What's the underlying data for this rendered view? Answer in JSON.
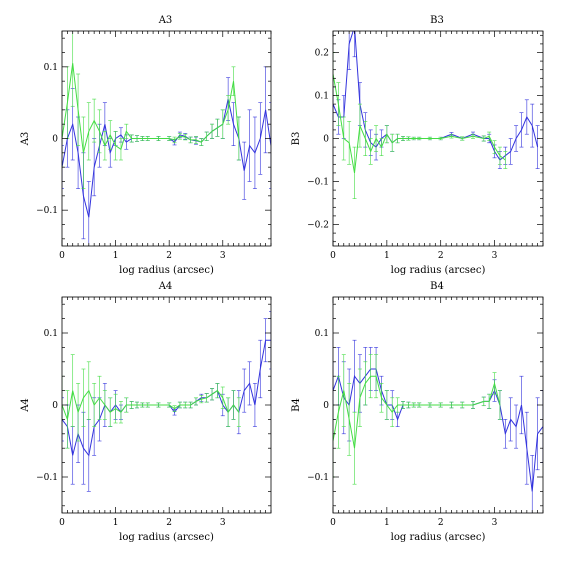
{
  "colors": {
    "series_a": "#3333dd",
    "series_b": "#44dd44",
    "axes": "#000000"
  },
  "chart_data": [
    {
      "type": "line",
      "title": "A3",
      "xlabel": "log radius (arcsec)",
      "ylabel": "A3",
      "xlim": [
        0,
        3.9
      ],
      "ylim": [
        -0.15,
        0.15
      ],
      "xticks": [
        0,
        1,
        2,
        3
      ],
      "yticks": [
        -0.1,
        0,
        0.1
      ],
      "yticklabels": [
        "−0.1",
        "0",
        "0.1"
      ],
      "grid": false,
      "series": [
        {
          "color": "#3333dd",
          "x": [
            0,
            0.1,
            0.2,
            0.3,
            0.4,
            0.5,
            0.6,
            0.7,
            0.8,
            0.9,
            1.0,
            1.1,
            1.2,
            1.3,
            1.4,
            1.5,
            1.6,
            1.8,
            2.0,
            2.1,
            2.2,
            2.3,
            2.4,
            2.5,
            2.6,
            2.7,
            2.8,
            2.9,
            3.0,
            3.1,
            3.2,
            3.3,
            3.4,
            3.5,
            3.6,
            3.7,
            3.8,
            3.9
          ],
          "y": [
            -0.04,
            0.0,
            0.02,
            -0.02,
            -0.08,
            -0.11,
            -0.04,
            -0.01,
            0.02,
            -0.02,
            0.0,
            0.005,
            -0.005,
            0.0,
            0.0,
            0.0,
            0.0,
            0.0,
            0.0,
            -0.005,
            0.005,
            0.003,
            -0.002,
            -0.003,
            -0.005,
            0.003,
            0.01,
            0.015,
            0.02,
            0.055,
            0.02,
            0.0,
            -0.045,
            -0.01,
            -0.02,
            0.0,
            0.04,
            -0.01
          ],
          "err": [
            0.03,
            0.04,
            0.05,
            0.05,
            0.06,
            0.05,
            0.04,
            0.03,
            0.03,
            0.02,
            0.01,
            0.01,
            0.01,
            0.005,
            0.004,
            0.003,
            0.003,
            0.003,
            0.003,
            0.004,
            0.004,
            0.004,
            0.004,
            0.005,
            0.005,
            0.006,
            0.01,
            0.012,
            0.02,
            0.03,
            0.03,
            0.03,
            0.04,
            0.05,
            0.05,
            0.05,
            0.06,
            0.06
          ]
        },
        {
          "color": "#44dd44",
          "x": [
            0,
            0.1,
            0.2,
            0.3,
            0.4,
            0.5,
            0.6,
            0.7,
            0.8,
            0.9,
            1.0,
            1.1,
            1.2,
            1.3,
            1.4,
            1.5,
            1.6,
            1.8,
            2.0,
            2.1,
            2.2,
            2.3,
            2.4,
            2.5,
            2.6,
            2.7,
            2.8,
            2.9,
            3.0,
            3.1,
            3.2,
            3.3
          ],
          "y": [
            0.0,
            0.05,
            0.105,
            0.04,
            -0.02,
            0.01,
            0.025,
            0.01,
            -0.01,
            0.005,
            -0.01,
            -0.015,
            0.01,
            0.0,
            0.0,
            0.0,
            0.0,
            0.0,
            0.0,
            -0.002,
            0.003,
            0.002,
            -0.002,
            -0.002,
            -0.005,
            0.003,
            0.01,
            0.015,
            0.02,
            0.04,
            0.08,
            0.0
          ],
          "err": [
            0.04,
            0.05,
            0.06,
            0.05,
            0.05,
            0.04,
            0.03,
            0.03,
            0.02,
            0.02,
            0.02,
            0.015,
            0.01,
            0.005,
            0.004,
            0.003,
            0.003,
            0.003,
            0.003,
            0.004,
            0.004,
            0.004,
            0.004,
            0.005,
            0.005,
            0.006,
            0.01,
            0.012,
            0.02,
            0.02,
            0.02,
            0.03
          ]
        }
      ]
    },
    {
      "type": "line",
      "title": "B3",
      "xlabel": "log radius (arcsec)",
      "ylabel": "B3",
      "xlim": [
        0,
        3.9
      ],
      "ylim": [
        -0.25,
        0.25
      ],
      "xticks": [
        0,
        1,
        2,
        3
      ],
      "yticks": [
        -0.2,
        -0.1,
        0,
        0.1,
        0.2
      ],
      "yticklabels": [
        "−0.2",
        "−0.1",
        "0",
        "0.1",
        "0.2"
      ],
      "grid": false,
      "series": [
        {
          "color": "#3333dd",
          "x": [
            0,
            0.1,
            0.2,
            0.3,
            0.4,
            0.5,
            0.6,
            0.7,
            0.8,
            0.9,
            1.0,
            1.1,
            1.2,
            1.3,
            1.4,
            1.5,
            1.6,
            1.8,
            2.0,
            2.2,
            2.4,
            2.6,
            2.8,
            2.9,
            3.0,
            3.1,
            3.2,
            3.3,
            3.4,
            3.5,
            3.6,
            3.7,
            3.8
          ],
          "y": [
            0.08,
            0.05,
            0.05,
            0.22,
            0.26,
            0.08,
            0.02,
            -0.01,
            -0.02,
            0.0,
            0.01,
            -0.01,
            0.0,
            0.0,
            0.0,
            0.0,
            0.0,
            0.0,
            0.0,
            0.01,
            0.0,
            0.01,
            0.0,
            0.0,
            -0.03,
            -0.05,
            -0.04,
            -0.03,
            0.0,
            0.02,
            0.05,
            0.03,
            -0.02
          ],
          "err": [
            0.04,
            0.04,
            0.05,
            0.06,
            0.07,
            0.05,
            0.04,
            0.03,
            0.03,
            0.02,
            0.02,
            0.02,
            0.01,
            0.005,
            0.004,
            0.003,
            0.003,
            0.003,
            0.003,
            0.004,
            0.004,
            0.005,
            0.006,
            0.01,
            0.015,
            0.02,
            0.02,
            0.03,
            0.03,
            0.04,
            0.04,
            0.05,
            0.05
          ]
        },
        {
          "color": "#44dd44",
          "x": [
            0,
            0.1,
            0.2,
            0.3,
            0.4,
            0.5,
            0.6,
            0.7,
            0.8,
            0.9,
            1.0,
            1.1,
            1.2,
            1.3,
            1.4,
            1.5,
            1.6,
            1.8,
            2.0,
            2.2,
            2.4,
            2.6,
            2.8,
            2.9,
            3.0,
            3.1,
            3.2
          ],
          "y": [
            0.15,
            0.08,
            0.0,
            -0.01,
            -0.08,
            0.03,
            0.0,
            -0.03,
            0.0,
            -0.02,
            0.01,
            -0.01,
            0.0,
            0.0,
            0.0,
            0.0,
            0.0,
            0.0,
            0.0,
            0.005,
            0.0,
            0.005,
            0.0,
            0.005,
            -0.02,
            -0.04,
            -0.05
          ],
          "err": [
            0.05,
            0.05,
            0.05,
            0.05,
            0.06,
            0.05,
            0.04,
            0.03,
            0.03,
            0.02,
            0.02,
            0.02,
            0.01,
            0.005,
            0.004,
            0.003,
            0.003,
            0.003,
            0.003,
            0.004,
            0.004,
            0.005,
            0.006,
            0.01,
            0.015,
            0.02,
            0.02
          ]
        }
      ]
    },
    {
      "type": "line",
      "title": "A4",
      "xlabel": "log radius (arcsec)",
      "ylabel": "A4",
      "xlim": [
        0,
        3.9
      ],
      "ylim": [
        -0.15,
        0.15
      ],
      "xticks": [
        0,
        1,
        2,
        3
      ],
      "yticks": [
        -0.1,
        0,
        0.1
      ],
      "yticklabels": [
        "−0.1",
        "0",
        "0.1"
      ],
      "grid": false,
      "series": [
        {
          "color": "#3333dd",
          "x": [
            0,
            0.1,
            0.2,
            0.3,
            0.4,
            0.5,
            0.6,
            0.7,
            0.8,
            0.9,
            1.0,
            1.1,
            1.2,
            1.3,
            1.4,
            1.5,
            1.6,
            1.8,
            2.0,
            2.1,
            2.2,
            2.3,
            2.4,
            2.5,
            2.6,
            2.7,
            2.8,
            2.9,
            3.0,
            3.1,
            3.2,
            3.3,
            3.4,
            3.5,
            3.6,
            3.7,
            3.8,
            3.9
          ],
          "y": [
            -0.02,
            -0.03,
            -0.07,
            -0.04,
            -0.06,
            -0.07,
            -0.03,
            -0.02,
            0.0,
            -0.01,
            0.0,
            -0.01,
            0.0,
            0.0,
            0.0,
            0.0,
            0.0,
            0.0,
            0.0,
            -0.01,
            0.0,
            0.0,
            0.0,
            0.005,
            0.01,
            0.01,
            0.015,
            0.02,
            0.0,
            -0.01,
            0.0,
            -0.01,
            0.02,
            0.03,
            0.0,
            0.05,
            0.09,
            0.09
          ],
          "err": [
            0.03,
            0.03,
            0.04,
            0.04,
            0.05,
            0.05,
            0.04,
            0.03,
            0.03,
            0.02,
            0.02,
            0.01,
            0.01,
            0.005,
            0.004,
            0.003,
            0.003,
            0.003,
            0.003,
            0.004,
            0.004,
            0.004,
            0.004,
            0.005,
            0.005,
            0.006,
            0.008,
            0.01,
            0.015,
            0.02,
            0.02,
            0.03,
            0.03,
            0.03,
            0.03,
            0.04,
            0.03,
            0.04
          ]
        },
        {
          "color": "#44dd44",
          "x": [
            0,
            0.1,
            0.2,
            0.3,
            0.4,
            0.5,
            0.6,
            0.7,
            0.8,
            0.9,
            1.0,
            1.1,
            1.2,
            1.3,
            1.4,
            1.5,
            1.6,
            1.8,
            2.0,
            2.1,
            2.2,
            2.3,
            2.4,
            2.5,
            2.6,
            2.7,
            2.8,
            2.9,
            3.0,
            3.1,
            3.2,
            3.3
          ],
          "y": [
            0.0,
            -0.02,
            0.02,
            -0.01,
            0.01,
            0.02,
            0.0,
            0.01,
            0.0,
            -0.01,
            -0.005,
            -0.01,
            0.0,
            0.0,
            0.0,
            0.0,
            0.0,
            0.0,
            0.0,
            -0.005,
            0.0,
            0.0,
            0.0,
            0.005,
            0.008,
            0.01,
            0.015,
            0.02,
            0.01,
            -0.01,
            0.0,
            -0.01
          ],
          "err": [
            0.04,
            0.04,
            0.05,
            0.04,
            0.04,
            0.04,
            0.03,
            0.03,
            0.02,
            0.02,
            0.02,
            0.015,
            0.01,
            0.005,
            0.004,
            0.003,
            0.003,
            0.003,
            0.003,
            0.004,
            0.004,
            0.004,
            0.004,
            0.005,
            0.005,
            0.006,
            0.008,
            0.01,
            0.015,
            0.02,
            0.02,
            0.02
          ]
        }
      ]
    },
    {
      "type": "line",
      "title": "B4",
      "xlabel": "log radius (arcsec)",
      "ylabel": "B4",
      "xlim": [
        0,
        3.9
      ],
      "ylim": [
        -0.15,
        0.15
      ],
      "xticks": [
        0,
        1,
        2,
        3
      ],
      "yticks": [
        -0.1,
        0,
        0.1
      ],
      "yticklabels": [
        "−0.1",
        "0",
        "0.1"
      ],
      "grid": false,
      "series": [
        {
          "color": "#3333dd",
          "x": [
            0,
            0.1,
            0.2,
            0.3,
            0.4,
            0.5,
            0.6,
            0.7,
            0.8,
            0.9,
            1.0,
            1.1,
            1.2,
            1.3,
            1.4,
            1.5,
            1.6,
            1.8,
            2.0,
            2.2,
            2.4,
            2.6,
            2.8,
            2.9,
            3.0,
            3.1,
            3.2,
            3.3,
            3.4,
            3.5,
            3.6,
            3.7,
            3.8,
            3.9
          ],
          "y": [
            0.02,
            0.04,
            0.01,
            0.0,
            0.04,
            0.03,
            0.04,
            0.05,
            0.05,
            0.02,
            0.0,
            0.0,
            -0.02,
            0.0,
            0.0,
            0.0,
            0.0,
            0.0,
            0.0,
            0.0,
            0.0,
            0.0,
            0.005,
            0.005,
            0.02,
            0.0,
            -0.04,
            -0.02,
            -0.03,
            0.0,
            -0.06,
            -0.12,
            -0.04,
            -0.03
          ],
          "err": [
            0.04,
            0.04,
            0.05,
            0.05,
            0.05,
            0.04,
            0.04,
            0.03,
            0.03,
            0.02,
            0.02,
            0.02,
            0.01,
            0.005,
            0.004,
            0.003,
            0.003,
            0.003,
            0.003,
            0.004,
            0.004,
            0.005,
            0.006,
            0.01,
            0.015,
            0.02,
            0.02,
            0.03,
            0.03,
            0.04,
            0.05,
            0.05,
            0.05,
            0.05
          ]
        },
        {
          "color": "#44dd44",
          "x": [
            0,
            0.1,
            0.2,
            0.3,
            0.4,
            0.5,
            0.6,
            0.7,
            0.8,
            0.9,
            1.0,
            1.1,
            1.2,
            1.3,
            1.4,
            1.5,
            1.6,
            1.8,
            2.0,
            2.2,
            2.4,
            2.6,
            2.8,
            2.9,
            3.0,
            3.1
          ],
          "y": [
            -0.05,
            -0.01,
            0.02,
            -0.02,
            -0.06,
            0.01,
            0.03,
            0.04,
            0.04,
            0.01,
            0.0,
            -0.01,
            0.0,
            0.0,
            0.0,
            0.0,
            0.0,
            0.0,
            0.0,
            0.0,
            0.0,
            0.0,
            0.005,
            0.005,
            0.03,
            0.0
          ],
          "err": [
            0.05,
            0.05,
            0.05,
            0.05,
            0.05,
            0.04,
            0.03,
            0.03,
            0.03,
            0.02,
            0.02,
            0.02,
            0.01,
            0.005,
            0.004,
            0.003,
            0.003,
            0.003,
            0.003,
            0.004,
            0.004,
            0.005,
            0.006,
            0.01,
            0.015,
            0.02
          ]
        }
      ]
    }
  ]
}
